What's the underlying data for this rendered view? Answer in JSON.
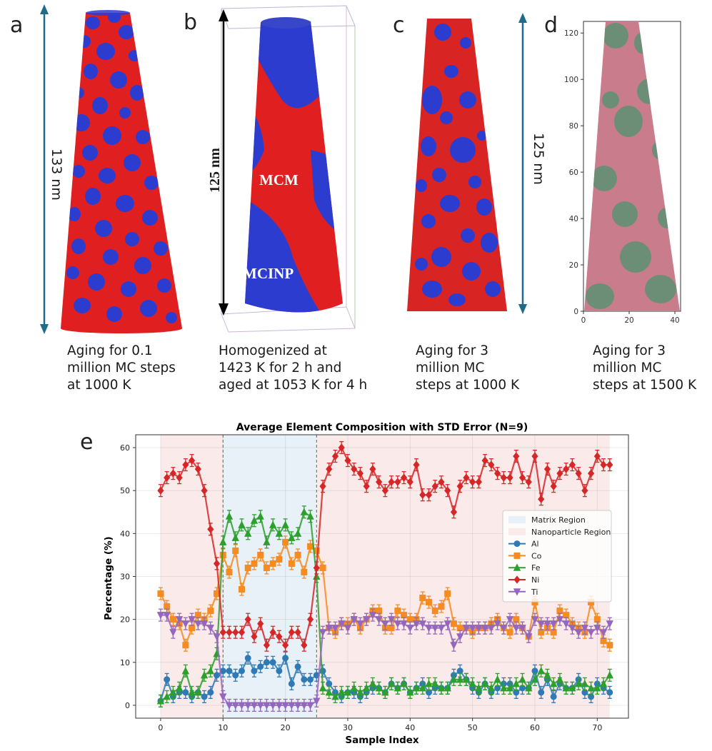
{
  "panels": {
    "a": {
      "letter": "a",
      "dimension": "133 nm",
      "caption": "Aging for 0.1\nmillion MC steps\nat 1000 K"
    },
    "b": {
      "letter": "b",
      "dimension": "125 nm",
      "label_top": "MCM",
      "label_bottom": "MCINP",
      "caption": "Homogenized at\n1423 K for 2 h and\naged at 1053 K for 4 h"
    },
    "c": {
      "letter": "c",
      "dimension": "125 nm",
      "caption": "Aging for 3\nmillion MC\nsteps at 1000 K"
    },
    "d": {
      "letter": "d",
      "caption": "Aging for 3\nmillion MC\nsteps at 1500 K",
      "y_ticks": [
        "0",
        "20",
        "40",
        "60",
        "80",
        "100",
        "120"
      ],
      "x_ticks": [
        "0",
        "20",
        "40"
      ]
    },
    "e": {
      "letter": "e"
    }
  },
  "colors": {
    "matrix": "#e02020",
    "particle": "#2c3ccf",
    "arrow": "#1f6b8a"
  },
  "chart_data": {
    "type": "line",
    "title": "Average Element Composition with STD Error (N=9)",
    "xlabel": "Sample Index",
    "ylabel": "Percentage (%)",
    "xlim": [
      -4,
      75
    ],
    "ylim": [
      -3,
      63
    ],
    "x_ticks": [
      0,
      10,
      20,
      30,
      40,
      50,
      60,
      70
    ],
    "y_ticks": [
      0,
      10,
      20,
      30,
      40,
      50,
      60
    ],
    "grid": true,
    "legend_position": "center-right",
    "regions": [
      {
        "name": "Matrix Region",
        "color": "#e8f1f7",
        "x": [
          10,
          25
        ]
      },
      {
        "name": "Nanoparticle Region",
        "color": "#fbeaea",
        "x": [
          0,
          10
        ]
      },
      {
        "name": "Nanoparticle Region",
        "color": "#fbeaea",
        "x": [
          25,
          72
        ]
      }
    ],
    "series": [
      {
        "name": "Al",
        "color": "#2f7ab5",
        "marker": "circle",
        "values": [
          1,
          6,
          2,
          3,
          3,
          2,
          3,
          2,
          3,
          7,
          8,
          8,
          7,
          8,
          11,
          8,
          9,
          10,
          10,
          8,
          11,
          5,
          9,
          6,
          6,
          7,
          8,
          5,
          3,
          2,
          3,
          3,
          2,
          3,
          4,
          4,
          3,
          5,
          4,
          5,
          3,
          4,
          5,
          3,
          4,
          4,
          4,
          7,
          8,
          6,
          4,
          3,
          5,
          3,
          4,
          5,
          5,
          3,
          4,
          4,
          8,
          3,
          6,
          2,
          5,
          4,
          4,
          6,
          3,
          2,
          5,
          4,
          3
        ]
      },
      {
        "name": "Co",
        "color": "#f68b1f",
        "marker": "square",
        "values": [
          26,
          23,
          20,
          19,
          14,
          18,
          21,
          20,
          22,
          26,
          35,
          31,
          36,
          27,
          32,
          33,
          35,
          32,
          33,
          34,
          38,
          33,
          35,
          31,
          37,
          36,
          32,
          18,
          17,
          19,
          19,
          20,
          18,
          20,
          22,
          22,
          18,
          18,
          22,
          21,
          20,
          20,
          25,
          24,
          22,
          23,
          26,
          19,
          18,
          18,
          17,
          18,
          18,
          19,
          20,
          18,
          17,
          20,
          18,
          16,
          24,
          17,
          18,
          17,
          22,
          21,
          19,
          18,
          17,
          24,
          20,
          15,
          14
        ]
      },
      {
        "name": "Fe",
        "color": "#2ca02c",
        "marker": "triangle-up",
        "values": [
          1,
          2,
          3,
          4,
          8,
          3,
          3,
          7,
          8,
          12,
          38,
          44,
          39,
          42,
          40,
          43,
          44,
          38,
          42,
          40,
          42,
          39,
          40,
          45,
          44,
          30,
          4,
          3,
          2,
          3,
          3,
          4,
          3,
          4,
          5,
          4,
          3,
          5,
          4,
          5,
          3,
          4,
          4,
          5,
          5,
          4,
          4,
          6,
          6,
          6,
          5,
          4,
          5,
          4,
          6,
          4,
          4,
          5,
          6,
          4,
          6,
          8,
          7,
          5,
          6,
          4,
          4,
          5,
          5,
          4,
          4,
          5,
          7
        ]
      },
      {
        "name": "Ni",
        "color": "#d62728",
        "marker": "diamond",
        "values": [
          50,
          53,
          54,
          53,
          56,
          57,
          55,
          50,
          41,
          33,
          17,
          17,
          17,
          17,
          20,
          16,
          19,
          14,
          17,
          16,
          14,
          17,
          17,
          14,
          20,
          32,
          51,
          55,
          58,
          60,
          57,
          55,
          54,
          51,
          55,
          52,
          50,
          52,
          52,
          53,
          52,
          56,
          49,
          49,
          51,
          52,
          50,
          45,
          51,
          53,
          52,
          52,
          57,
          56,
          54,
          53,
          53,
          58,
          53,
          52,
          58,
          48,
          55,
          51,
          54,
          55,
          56,
          54,
          50,
          54,
          58,
          56,
          56
        ]
      },
      {
        "name": "Ti",
        "color": "#9467bd",
        "marker": "triangle-down",
        "values": [
          21,
          21,
          17,
          20,
          19,
          20,
          19,
          19,
          18,
          16,
          2,
          0,
          0,
          0,
          0,
          0,
          0,
          0,
          0,
          0,
          0,
          0,
          0,
          0,
          0,
          1,
          17,
          18,
          18,
          19,
          18,
          20,
          19,
          20,
          21,
          20,
          19,
          20,
          19,
          19,
          18,
          19,
          19,
          18,
          18,
          18,
          19,
          14,
          16,
          18,
          18,
          18,
          18,
          18,
          19,
          18,
          20,
          18,
          18,
          16,
          20,
          19,
          19,
          19,
          20,
          19,
          18,
          17,
          18,
          17,
          18,
          17,
          19
        ]
      }
    ]
  }
}
